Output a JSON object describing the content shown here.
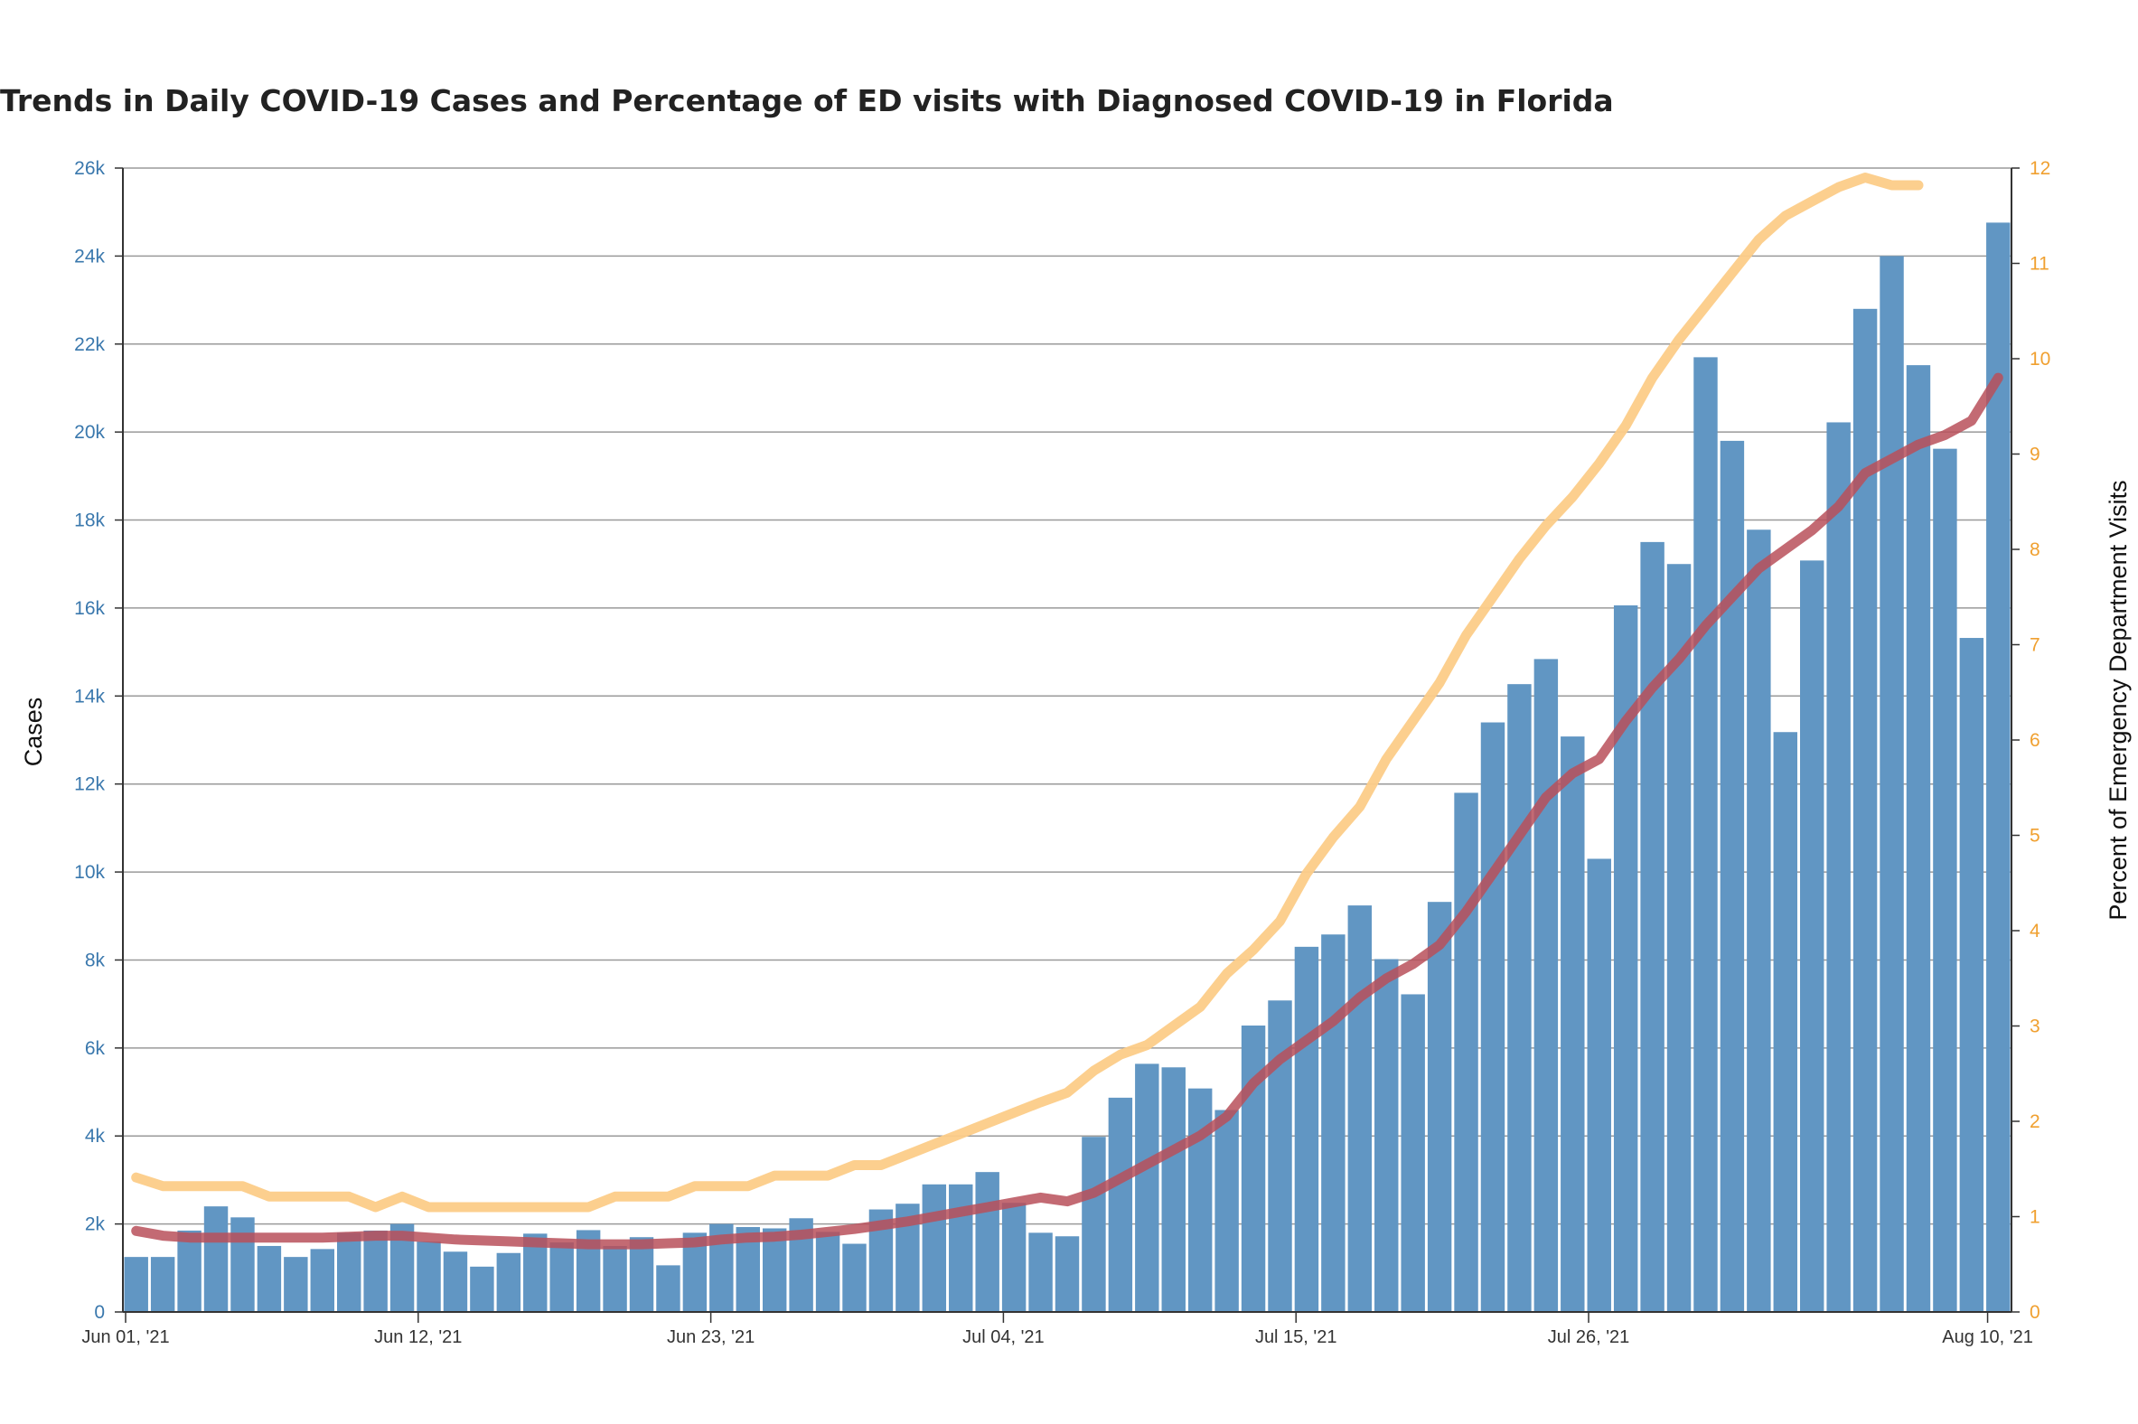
{
  "chart_data": {
    "type": "bar",
    "title": "Trends in Daily COVID-19 Cases and Percentage of ED visits with Diagnosed COVID-19 in Florida",
    "ylabel": "Cases",
    "y2label": "Percent of Emergency Department Visits",
    "ylim": [
      0,
      26000
    ],
    "y2lim": [
      0,
      12
    ],
    "grid": true,
    "left_ticks": [
      "0",
      "2k",
      "4k",
      "6k",
      "8k",
      "10k",
      "12k",
      "14k",
      "16k",
      "18k",
      "20k",
      "22k",
      "24k",
      "26k"
    ],
    "right_ticks": [
      "0",
      "1",
      "2",
      "3",
      "4",
      "5",
      "6",
      "7",
      "8",
      "9",
      "10",
      "11",
      "12"
    ],
    "x_ticks": [
      {
        "label": "Jun 01, '21",
        "day": 0
      },
      {
        "label": "Jun 12, '21",
        "day": 11
      },
      {
        "label": "Jun 23, '21",
        "day": 22
      },
      {
        "label": "Jul 04, '21",
        "day": 33
      },
      {
        "label": "Jul 15, '21",
        "day": 44
      },
      {
        "label": "Jul 26, '21",
        "day": 55
      },
      {
        "label": "Aug 10, '21",
        "day": 70
      }
    ],
    "series": [
      {
        "name": "",
        "type": "bar",
        "axis": "left",
        "color": "#6196c3",
        "start_date": "2021-06-01",
        "values": [
          1250,
          1250,
          1850,
          2400,
          2150,
          1500,
          1250,
          1430,
          1800,
          1850,
          2000,
          1600,
          1370,
          1030,
          1340,
          1780,
          1580,
          1860,
          1500,
          1700,
          1060,
          1800,
          2000,
          1930,
          1900,
          2130,
          1820,
          1550,
          2330,
          2460,
          2900,
          2900,
          3180,
          2480,
          1800,
          1720,
          3980,
          4870,
          5640,
          5560,
          5080,
          4590,
          6510,
          7080,
          8300,
          8580,
          9240,
          8020,
          7220,
          9320,
          11800,
          13400,
          14270,
          14840,
          13080,
          10300,
          16060,
          17500,
          17000,
          21700,
          19800,
          17780,
          13180,
          17080,
          20220,
          22800,
          24000,
          21520,
          19620,
          15320,
          24760
        ]
      },
      {
        "name": "",
        "type": "line",
        "axis": "right",
        "color": "#fccc88",
        "start_date": "2021-06-01",
        "values": [
          1.41,
          1.32,
          1.32,
          1.32,
          1.32,
          1.21,
          1.21,
          1.21,
          1.21,
          1.1,
          1.21,
          1.1,
          1.1,
          1.1,
          1.1,
          1.1,
          1.1,
          1.1,
          1.21,
          1.21,
          1.21,
          1.32,
          1.32,
          1.32,
          1.43,
          1.43,
          1.43,
          1.54,
          1.54,
          1.65,
          1.76,
          1.87,
          1.98,
          2.09,
          2.2,
          2.3,
          2.53,
          2.7,
          2.8,
          3.0,
          3.2,
          3.55,
          3.8,
          4.1,
          4.6,
          4.98,
          5.3,
          5.8,
          6.2,
          6.6,
          7.1,
          7.5,
          7.9,
          8.25,
          8.55,
          8.9,
          9.3,
          9.8,
          10.2,
          10.55,
          10.9,
          11.25,
          11.5,
          11.65,
          11.8,
          11.9,
          11.82,
          11.82
        ]
      },
      {
        "name": "",
        "type": "line",
        "axis": "right",
        "color": "#b8505a",
        "start_date": "2021-06-01",
        "values": [
          0.85,
          0.8,
          0.78,
          0.78,
          0.78,
          0.78,
          0.78,
          0.78,
          0.79,
          0.8,
          0.8,
          0.78,
          0.76,
          0.75,
          0.74,
          0.73,
          0.72,
          0.71,
          0.71,
          0.71,
          0.72,
          0.73,
          0.76,
          0.78,
          0.79,
          0.81,
          0.84,
          0.87,
          0.91,
          0.95,
          1.0,
          1.05,
          1.1,
          1.15,
          1.2,
          1.16,
          1.25,
          1.4,
          1.55,
          1.7,
          1.85,
          2.05,
          2.4,
          2.65,
          2.85,
          3.05,
          3.3,
          3.5,
          3.65,
          3.85,
          4.2,
          4.6,
          5.0,
          5.4,
          5.65,
          5.8,
          6.2,
          6.55,
          6.85,
          7.2,
          7.5,
          7.8,
          8.0,
          8.2,
          8.45,
          8.8,
          8.95,
          9.1,
          9.2,
          9.35,
          9.8
        ]
      }
    ]
  }
}
